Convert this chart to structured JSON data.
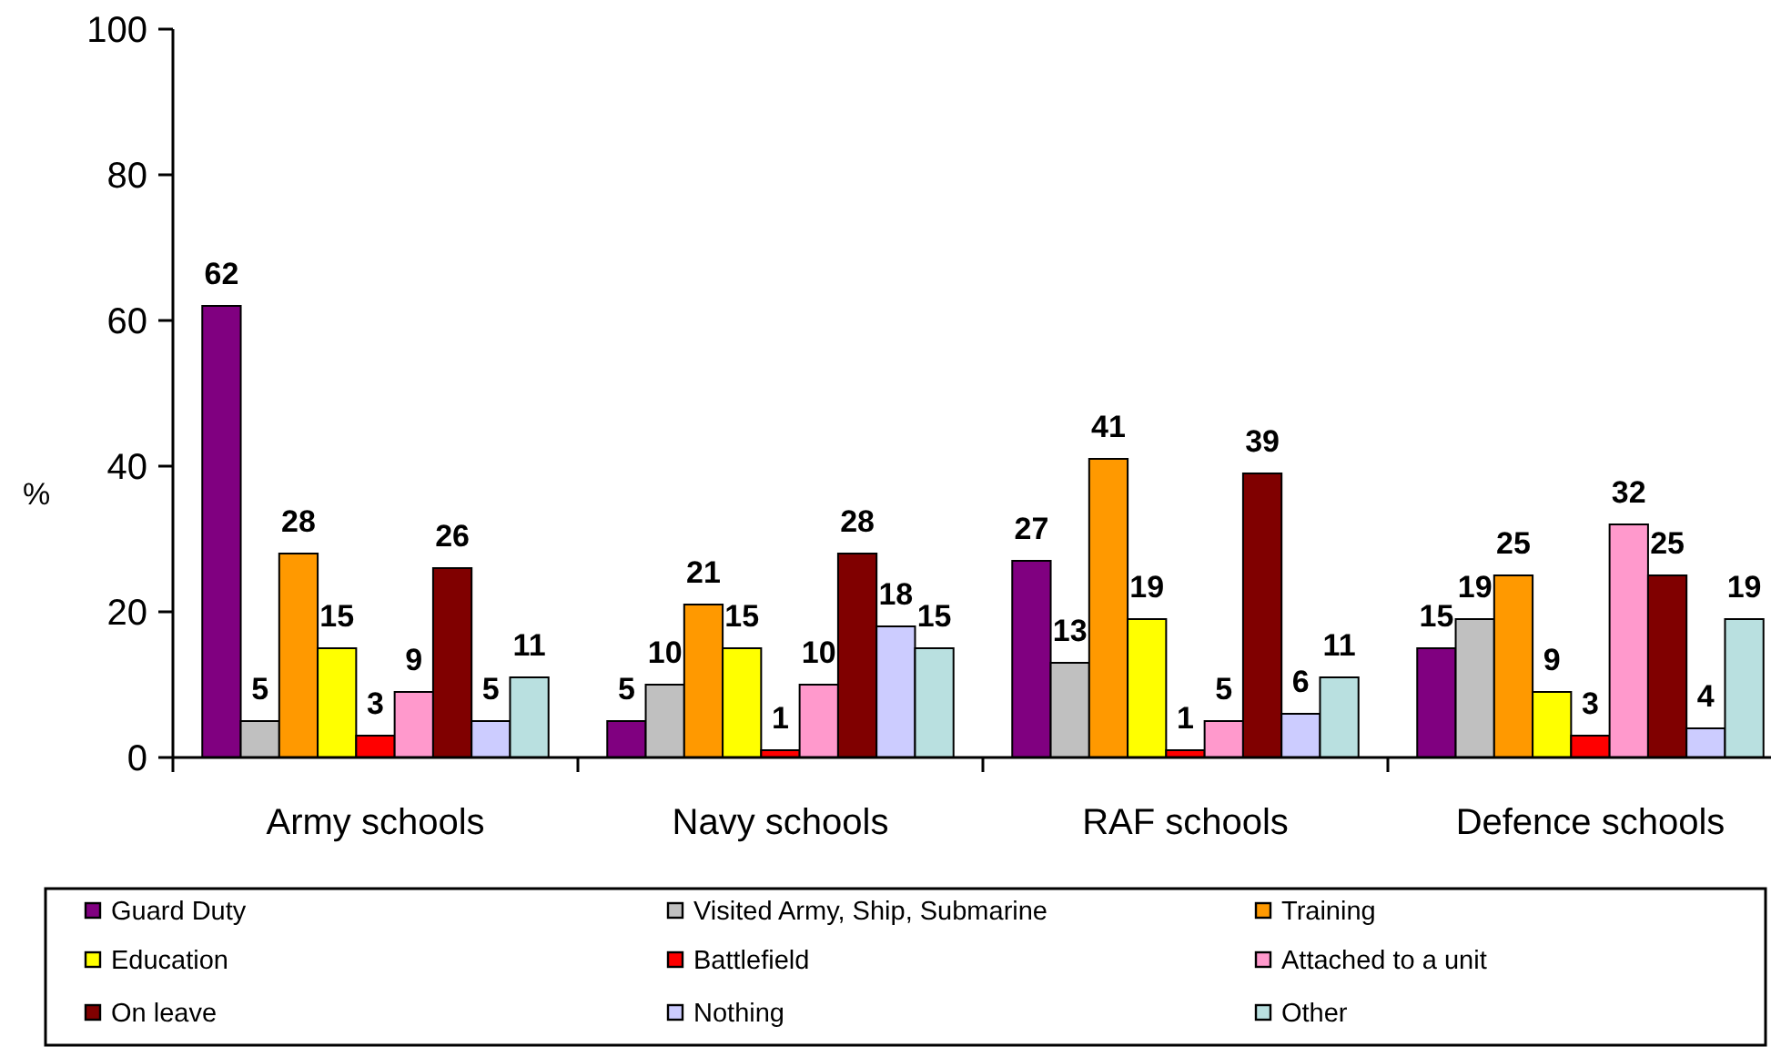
{
  "chart_data": {
    "type": "bar",
    "ylabel": "%",
    "categories": [
      "Army schools",
      "Navy schools",
      "RAF schools",
      "Defence schools"
    ],
    "series": [
      {
        "name": "Guard Duty",
        "color": "#800080",
        "values": [
          62,
          5,
          27,
          15
        ]
      },
      {
        "name": "Visited Army, Ship, Submarine",
        "color": "#c0c0c0",
        "values": [
          5,
          10,
          13,
          19
        ]
      },
      {
        "name": "Training",
        "color": "#ff9900",
        "values": [
          28,
          21,
          41,
          25
        ]
      },
      {
        "name": "Education",
        "color": "#ffff00",
        "values": [
          15,
          15,
          19,
          9
        ]
      },
      {
        "name": "Battlefield",
        "color": "#ff0000",
        "values": [
          3,
          1,
          1,
          3
        ]
      },
      {
        "name": "Attached to a unit",
        "color": "#ff99cc",
        "values": [
          9,
          10,
          5,
          32
        ]
      },
      {
        "name": "On leave",
        "color": "#800000",
        "values": [
          26,
          28,
          39,
          25
        ]
      },
      {
        "name": "Nothing",
        "color": "#ccccff",
        "values": [
          5,
          18,
          6,
          4
        ]
      },
      {
        "name": "Other",
        "color": "#b9e0e0",
        "values": [
          11,
          15,
          11,
          19
        ]
      }
    ],
    "ylim": [
      0,
      100
    ],
    "yticks": [
      0,
      20,
      40,
      60,
      80,
      100
    ],
    "grid": false,
    "legend": "bottom",
    "data_labels": true
  }
}
